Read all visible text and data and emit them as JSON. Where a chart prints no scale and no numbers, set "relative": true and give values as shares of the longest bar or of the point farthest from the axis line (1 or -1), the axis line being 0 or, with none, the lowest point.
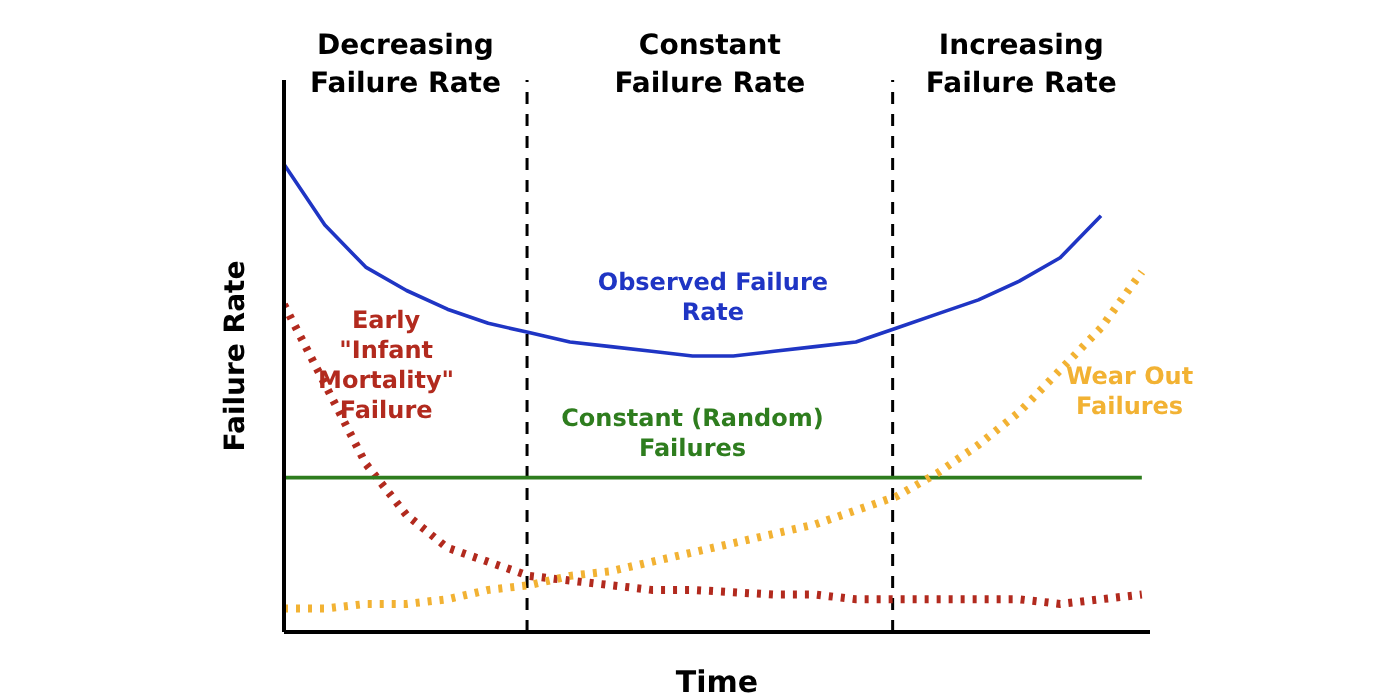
{
  "chart_data": {
    "type": "line",
    "relative": true,
    "xlabel": "Time",
    "ylabel": "Failure Rate",
    "tick_labels": false,
    "marker": "none",
    "categories": [
      null,
      null,
      null,
      null,
      null,
      null,
      null,
      null,
      null,
      null,
      null,
      null,
      null,
      null,
      null,
      null,
      null,
      null,
      null,
      null,
      null,
      null
    ],
    "series": [
      {
        "name": "Observed Failure Rate",
        "color": "#1f35c4",
        "line_style": "solid",
        "values": [
          1,
          0.87,
          0.78,
          0.73,
          0.69,
          0.66,
          0.64,
          0.62,
          0.61,
          0.6,
          0.59,
          0.59,
          0.6,
          0.61,
          0.62,
          0.65,
          0.68,
          0.71,
          0.75,
          0.8,
          0.89,
          null
        ]
      },
      {
        "name": "Early \"Infant Mortality\" Failure",
        "color": "#b22a1e",
        "line_style": "dotted",
        "values": [
          0.7,
          0.53,
          0.36,
          0.25,
          0.18,
          0.15,
          0.12,
          0.11,
          0.1,
          0.09,
          0.09,
          0.085,
          0.08,
          0.08,
          0.07,
          0.07,
          0.07,
          0.07,
          0.07,
          0.06,
          0.07,
          0.08
        ]
      },
      {
        "name": "Constant (Random) Failures",
        "color": "#2e7d1e",
        "line_style": "solid",
        "values": [
          0.33,
          0.33,
          0.33,
          0.33,
          0.33,
          0.33,
          0.33,
          0.33,
          0.33,
          0.33,
          0.33,
          0.33,
          0.33,
          0.33,
          0.33,
          0.33,
          0.33,
          0.33,
          0.33,
          0.33,
          0.33,
          0.33
        ]
      },
      {
        "name": "Wear Out Failures",
        "color": "#f2b233",
        "line_style": "dotted",
        "values": [
          0.05,
          0.05,
          0.06,
          0.06,
          0.07,
          0.09,
          0.1,
          0.12,
          0.13,
          0.15,
          0.17,
          0.19,
          0.21,
          0.23,
          0.26,
          0.29,
          0.34,
          0.4,
          0.47,
          0.56,
          0.65,
          0.77
        ]
      }
    ],
    "annotations": [
      "Decreasing Failure Rate",
      "Constant Failure Rate",
      "Increasing Failure Rate"
    ]
  }
}
